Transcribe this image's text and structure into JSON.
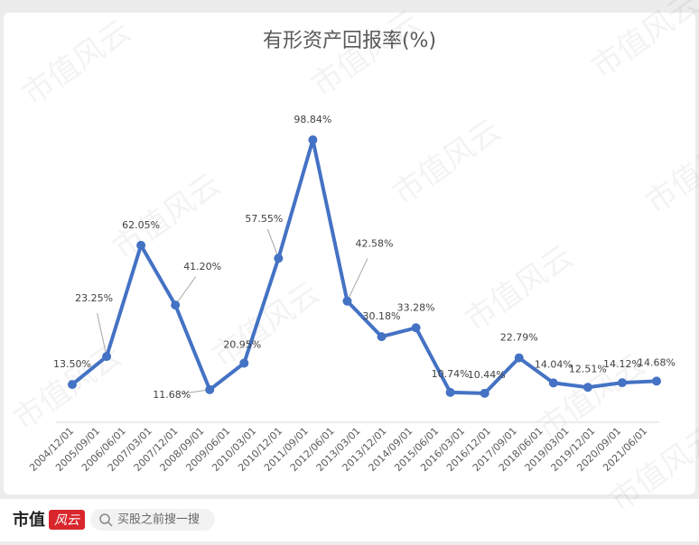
{
  "chart_data": {
    "type": "line",
    "title": "有形资产回报率(%)",
    "xticks": [
      "2004/12/01",
      "2005/09/01",
      "2006/06/01",
      "2007/03/01",
      "2007/12/01",
      "2008/09/01",
      "2009/06/01",
      "2010/03/01",
      "2010/12/01",
      "2011/09/01",
      "2012/06/01",
      "2013/03/01",
      "2013/12/01",
      "2014/09/01",
      "2015/06/01",
      "2016/03/01",
      "2016/12/01",
      "2017/09/01",
      "2018/06/01",
      "2019/03/01",
      "2019/12/01",
      "2020/09/01",
      "2021/06/01"
    ],
    "series": [
      {
        "color": "#4472c4",
        "values": [
          13.5,
          23.25,
          62.05,
          41.2,
          11.68,
          20.95,
          57.55,
          98.84,
          42.58,
          30.18,
          33.28,
          10.74,
          10.44,
          22.79,
          14.04,
          12.51,
          14.12,
          14.68
        ],
        "value_labels": [
          "13.50%",
          "23.25%",
          "62.05%",
          "41.20%",
          "11.68%",
          "20.95%",
          "57.55%",
          "98.84%",
          "42.58%",
          "30.18%",
          "33.28%",
          "10.74%",
          "10.44%",
          "22.79%",
          "14.04%",
          "12.51%",
          "14.12%",
          "14.68%"
        ]
      }
    ]
  },
  "watermark": "市值风云",
  "footer": {
    "brand": "市值",
    "brand_badge": "风云",
    "search_placeholder": "买股之前搜一搜"
  }
}
